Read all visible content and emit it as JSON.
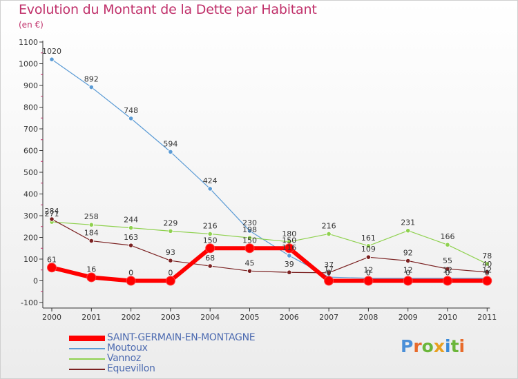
{
  "title": "Evolution du Montant de la Dette par Habitant",
  "subtitle": "(en €)",
  "logo": {
    "text": "Proxiti",
    "letters": [
      "P",
      "r",
      "o",
      "x",
      "i",
      "t",
      "i"
    ],
    "colors": [
      "#4a8fd8",
      "#e86a2a",
      "#6bb63a",
      "#e8a020",
      "#3a8ad8",
      "#6bb63a",
      "#e86a2a"
    ]
  },
  "chart_data": {
    "type": "line",
    "x": [
      "2000",
      "2001",
      "2002",
      "2003",
      "2004",
      "2005",
      "2006",
      "2007",
      "2008",
      "2009",
      "2010",
      "2011"
    ],
    "ylim": [
      -100,
      1100
    ],
    "yticks": [
      "-100",
      "0",
      "100",
      "200",
      "300",
      "400",
      "500",
      "600",
      "700",
      "800",
      "900",
      "1000",
      "1100"
    ],
    "grid": false,
    "legend_position": "bottom-left",
    "series": [
      {
        "name": "SAINT-GERMAIN-EN-MONTAGNE",
        "color": "#ff0000",
        "values": [
          61,
          16,
          0,
          0,
          150,
          150,
          150,
          0,
          0,
          0,
          0,
          0
        ],
        "labels": [
          "61",
          "16",
          "0",
          "0",
          "150",
          "150",
          "150",
          "0",
          "0",
          "0",
          "0",
          "0"
        ]
      },
      {
        "name": "Moutoux",
        "color": "#5b9bd5",
        "values": [
          1020,
          892,
          748,
          594,
          424,
          230,
          116,
          17,
          12,
          12,
          12,
          12
        ],
        "labels": [
          "1020",
          "892",
          "748",
          "594",
          "424",
          "230",
          "116",
          "17",
          "12",
          "12",
          "12",
          "12"
        ]
      },
      {
        "name": "Vannoz",
        "color": "#8fd14f",
        "values": [
          271,
          258,
          244,
          229,
          216,
          198,
          180,
          216,
          161,
          231,
          166,
          78
        ],
        "labels": [
          "271",
          "258",
          "244",
          "229",
          "216",
          "198",
          "180",
          "216",
          "161",
          "231",
          "166",
          "78"
        ]
      },
      {
        "name": "Equevillon",
        "color": "#7b2222",
        "values": [
          284,
          184,
          163,
          93,
          68,
          45,
          39,
          37,
          109,
          92,
          55,
          40
        ],
        "labels": [
          "284",
          "184",
          "163",
          "93",
          "68",
          "45",
          "39",
          "37",
          "109",
          "92",
          "55",
          "40"
        ]
      }
    ]
  }
}
